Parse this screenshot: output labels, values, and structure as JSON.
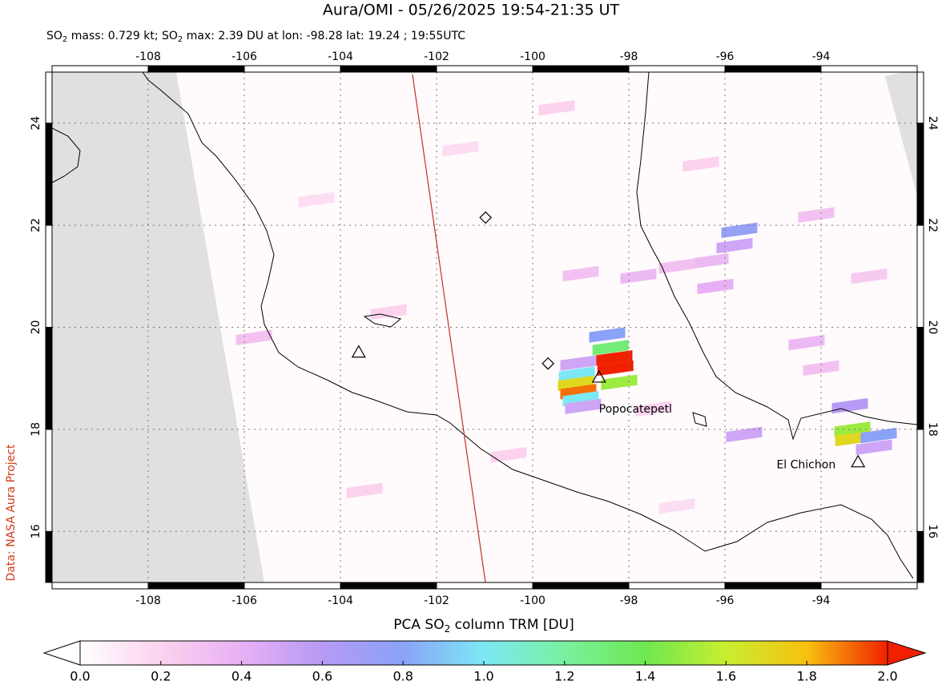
{
  "map": {
    "title": "Aura/OMI - 05/26/2025 19:54-21:35 UT",
    "subtitle": [
      "SO",
      "2",
      " mass: 0.729 kt; SO",
      "2",
      " max: 2.39 DU at lon: -98.28 lat: 19.24 ; 19:55UTC"
    ],
    "credit": "Data: NASA Aura Project",
    "xlim": [
      -110,
      -92
    ],
    "ylim": [
      15,
      25
    ],
    "xticks": [
      -108,
      -106,
      -104,
      -102,
      -100,
      -98,
      -96,
      -94
    ],
    "yticks": [
      16,
      18,
      20,
      22,
      24
    ],
    "grid": true,
    "volcanoes": [
      {
        "name": "Popocatepetl",
        "lon": -98.62,
        "lat": 19.02
      },
      {
        "name": "El Chichon",
        "lon": -93.23,
        "lat": 17.36
      }
    ],
    "other_markers": [
      {
        "shape": "triangle",
        "lon": -103.62,
        "lat": 19.51
      },
      {
        "shape": "diamond",
        "lon": -100.98,
        "lat": 22.15
      },
      {
        "shape": "diamond",
        "lon": -99.68,
        "lat": 19.29
      }
    ],
    "pixels": [
      {
        "lon": -98.45,
        "lat": 19.85,
        "value": 0.8
      },
      {
        "lon": -98.38,
        "lat": 19.6,
        "value": 1.3
      },
      {
        "lon": -98.3,
        "lat": 19.4,
        "value": 2.2
      },
      {
        "lon": -98.28,
        "lat": 19.2,
        "value": 2.39
      },
      {
        "lon": -98.2,
        "lat": 18.92,
        "value": 1.5
      },
      {
        "lon": -99.05,
        "lat": 19.3,
        "value": 0.5
      },
      {
        "lon": -99.08,
        "lat": 19.08,
        "value": 1.0
      },
      {
        "lon": -99.1,
        "lat": 18.9,
        "value": 1.7
      },
      {
        "lon": -99.05,
        "lat": 18.74,
        "value": 1.9
      },
      {
        "lon": -99.0,
        "lat": 18.6,
        "value": 1.0
      },
      {
        "lon": -98.95,
        "lat": 18.45,
        "value": 0.5
      },
      {
        "lon": -93.4,
        "lat": 18.46,
        "value": 0.6
      },
      {
        "lon": -93.35,
        "lat": 18.0,
        "value": 1.5
      },
      {
        "lon": -93.33,
        "lat": 17.82,
        "value": 1.7
      },
      {
        "lon": -92.8,
        "lat": 17.88,
        "value": 0.8
      },
      {
        "lon": -92.9,
        "lat": 17.65,
        "value": 0.5
      },
      {
        "lon": -95.7,
        "lat": 21.9,
        "value": 0.75
      },
      {
        "lon": -95.8,
        "lat": 21.6,
        "value": 0.5
      },
      {
        "lon": -96.3,
        "lat": 21.3,
        "value": 0.35
      },
      {
        "lon": -97.0,
        "lat": 21.2,
        "value": 0.3
      },
      {
        "lon": -97.8,
        "lat": 21.0,
        "value": 0.35
      },
      {
        "lon": -99.0,
        "lat": 21.05,
        "value": 0.3
      },
      {
        "lon": -96.2,
        "lat": 20.8,
        "value": 0.4
      },
      {
        "lon": -94.1,
        "lat": 22.2,
        "value": 0.3
      },
      {
        "lon": -94.3,
        "lat": 19.7,
        "value": 0.35
      },
      {
        "lon": -94.0,
        "lat": 19.2,
        "value": 0.3
      },
      {
        "lon": -95.6,
        "lat": 17.9,
        "value": 0.5
      },
      {
        "lon": -97.5,
        "lat": 18.4,
        "value": 0.2
      },
      {
        "lon": -103.0,
        "lat": 20.3,
        "value": 0.2
      },
      {
        "lon": -105.8,
        "lat": 19.8,
        "value": 0.3
      },
      {
        "lon": -101.5,
        "lat": 23.5,
        "value": 0.15
      },
      {
        "lon": -99.5,
        "lat": 24.3,
        "value": 0.2
      },
      {
        "lon": -96.5,
        "lat": 23.2,
        "value": 0.2
      },
      {
        "lon": -93.0,
        "lat": 21.0,
        "value": 0.25
      },
      {
        "lon": -104.5,
        "lat": 22.5,
        "value": 0.15
      },
      {
        "lon": -100.5,
        "lat": 17.5,
        "value": 0.2
      },
      {
        "lon": -97.0,
        "lat": 16.5,
        "value": 0.15
      },
      {
        "lon": -103.5,
        "lat": 16.8,
        "value": 0.2
      }
    ],
    "colorbar": {
      "label": [
        "PCA SO",
        "2",
        " column TRM [DU]"
      ],
      "lim": [
        0,
        2
      ],
      "ticks": [
        {
          "value": 0,
          "label": "0.0"
        },
        {
          "value": 0.2,
          "label": "0.2"
        },
        {
          "value": 0.4,
          "label": "0.4"
        },
        {
          "value": 0.6,
          "label": "0.6"
        },
        {
          "value": 0.8,
          "label": "0.8"
        },
        {
          "value": 1,
          "label": "1.0"
        },
        {
          "value": 1.2,
          "label": "1.2"
        },
        {
          "value": 1.4,
          "label": "1.4"
        },
        {
          "value": 1.6,
          "label": "1.6"
        },
        {
          "value": 1.8,
          "label": "1.8"
        },
        {
          "value": 2,
          "label": "2.0"
        }
      ],
      "colors": [
        "#ffffff",
        "#fcd2ee",
        "#e8b0f4",
        "#b69af5",
        "#8aa2f8",
        "#7de8f5",
        "#7af0a0",
        "#6ee850",
        "#c8ee30",
        "#f8c010",
        "#f02000"
      ]
    }
  }
}
